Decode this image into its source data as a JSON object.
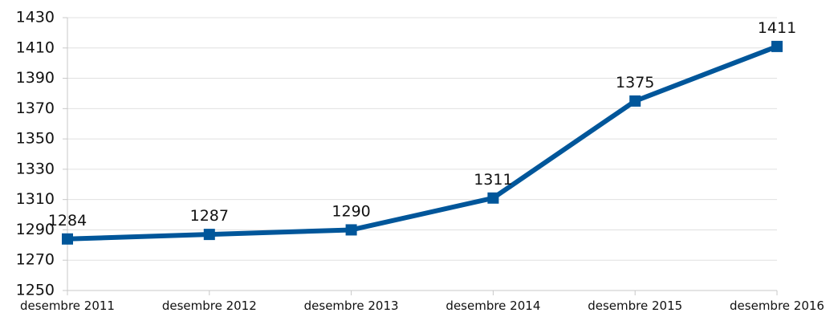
{
  "chart_data": {
    "type": "line",
    "title": "",
    "xlabel": "",
    "ylabel": "",
    "categories": [
      "desembre 2011",
      "desembre 2012",
      "desembre 2013",
      "desembre 2014",
      "desembre 2015",
      "desembre 2016"
    ],
    "series": [
      {
        "values": [
          1284,
          1287,
          1290,
          1311,
          1375,
          1411
        ],
        "color": "#00569a"
      }
    ],
    "ylim": [
      1250,
      1430
    ],
    "yticks": [
      1250,
      1270,
      1290,
      1310,
      1330,
      1350,
      1370,
      1390,
      1410,
      1430
    ],
    "grid": {
      "horizontal": true,
      "vertical": false
    },
    "marker": "square",
    "data_labels": true,
    "legend": "none"
  }
}
